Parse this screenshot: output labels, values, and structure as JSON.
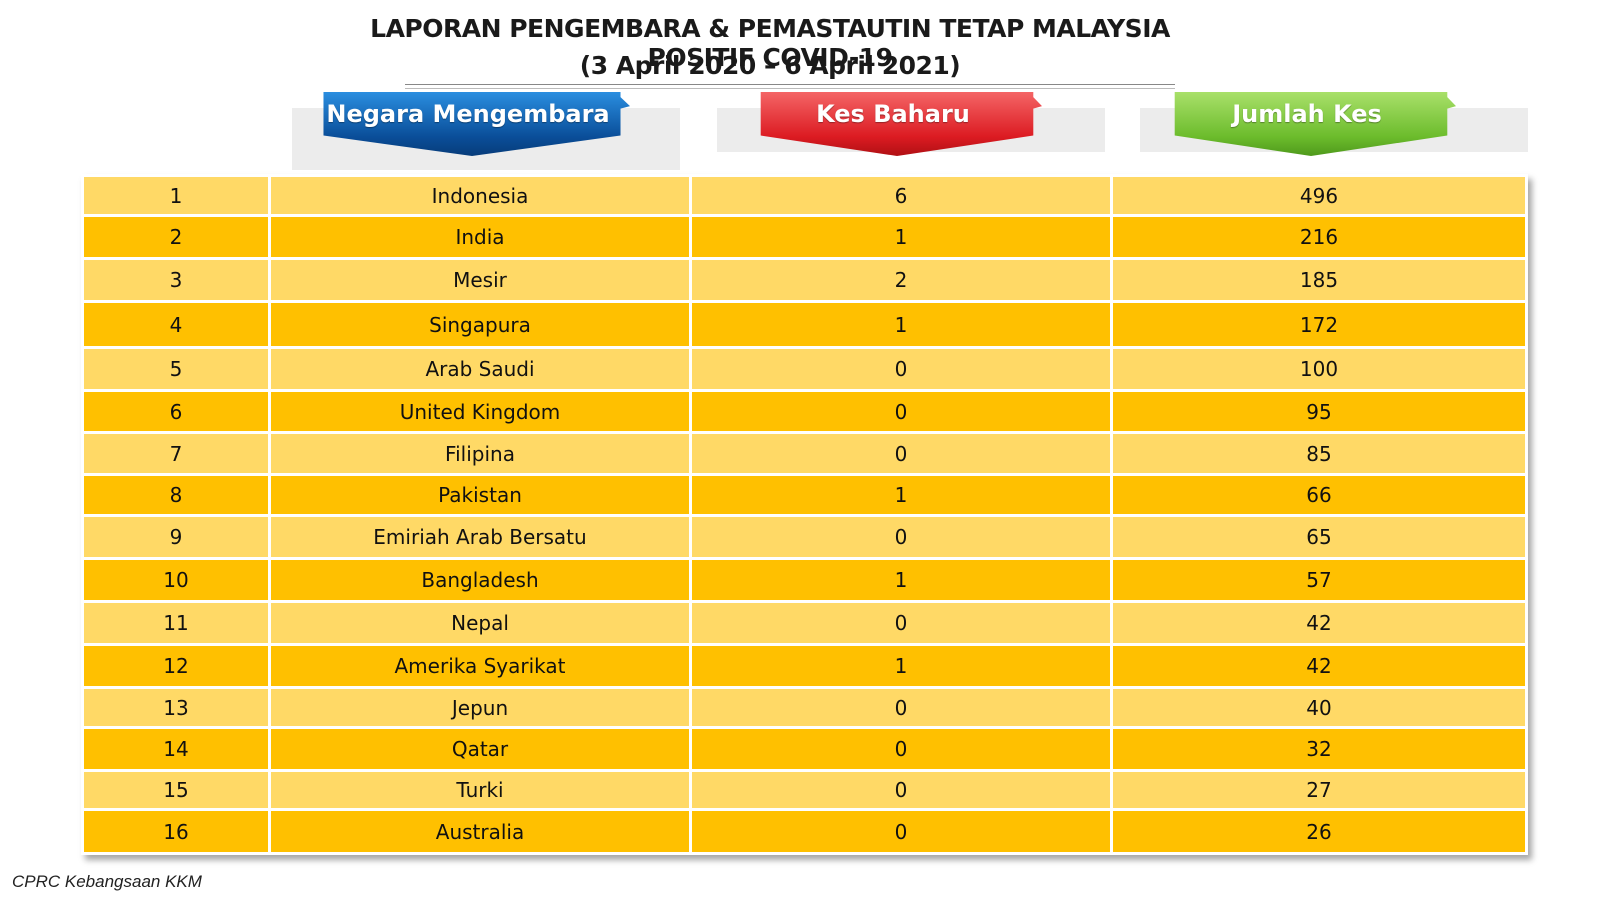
{
  "title": "LAPORAN PENGEMBARA & PEMASTAUTIN TETAP MALAYSIA POSITIF COVID-19",
  "subtitle": "(3 April 2020 – 6 April 2021)",
  "headers": {
    "country": "Negara Mengembara",
    "new_cases": "Kes Baharu",
    "total_cases": "Jumlah Kes"
  },
  "colors": {
    "header_country": "#0a4e99",
    "header_new": "#dc1b22",
    "header_total": "#6cbc2c",
    "row_light": "#ffd966",
    "row_dark": "#ffc000"
  },
  "footer": "CPRC Kebangsaan KKM",
  "chart_data": {
    "type": "table",
    "title": "LAPORAN PENGEMBARA & PEMASTAUTIN TETAP MALAYSIA POSITIF COVID-19",
    "subtitle": "(3 April 2020 – 6 April 2021)",
    "columns": [
      "",
      "Negara Mengembara",
      "Kes Baharu",
      "Jumlah Kes"
    ],
    "rows": [
      [
        "1",
        "Indonesia",
        "6",
        "496"
      ],
      [
        "2",
        "India",
        "1",
        "216"
      ],
      [
        "3",
        "Mesir",
        "2",
        "185"
      ],
      [
        "4",
        "Singapura",
        "1",
        "172"
      ],
      [
        "5",
        "Arab Saudi",
        "0",
        "100"
      ],
      [
        "6",
        "United Kingdom",
        "0",
        "95"
      ],
      [
        "7",
        "Filipina",
        "0",
        "85"
      ],
      [
        "8",
        "Pakistan",
        "1",
        "66"
      ],
      [
        "9",
        "Emiriah Arab Bersatu",
        "0",
        "65"
      ],
      [
        "10",
        "Bangladesh",
        "1",
        "57"
      ],
      [
        "11",
        "Nepal",
        "0",
        "42"
      ],
      [
        "12",
        "Amerika Syarikat",
        "1",
        "42"
      ],
      [
        "13",
        "Jepun",
        "0",
        "40"
      ],
      [
        "14",
        "Qatar",
        "0",
        "32"
      ],
      [
        "15",
        "Turki",
        "0",
        "27"
      ],
      [
        "16",
        "Australia",
        "0",
        "26"
      ]
    ]
  }
}
